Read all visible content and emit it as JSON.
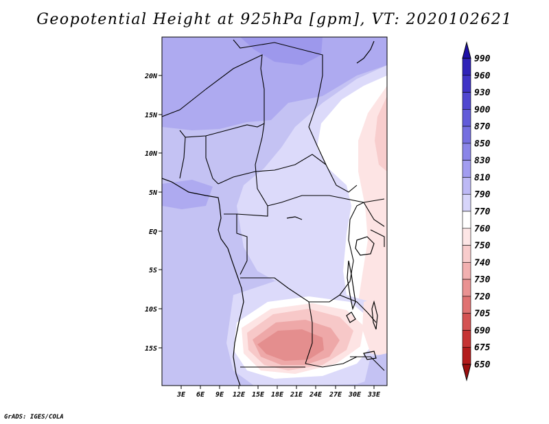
{
  "map": {
    "title": "Geopotential Height at 925hPa [gpm], VT: 2020102621",
    "variable": "Geopotential Height",
    "level": "925hPa",
    "units": "gpm",
    "valid_time": "2020102621",
    "lat_labels": [
      "20N",
      "15N",
      "10N",
      "5N",
      "EQ",
      "5S",
      "10S",
      "15S"
    ],
    "lon_labels": [
      "3E",
      "6E",
      "9E",
      "12E",
      "15E",
      "18E",
      "21E",
      "24E",
      "27E",
      "30E",
      "33E"
    ],
    "colorbar": {
      "levels": [
        "990",
        "960",
        "930",
        "900",
        "870",
        "850",
        "830",
        "810",
        "790",
        "770",
        "760",
        "750",
        "740",
        "730",
        "720",
        "705",
        "690",
        "675",
        "650"
      ],
      "colors": [
        "#1e10a8",
        "#2f22b8",
        "#3f33c6",
        "#5047d0",
        "#625bd9",
        "#756fe0",
        "#8a85e8",
        "#a29df0",
        "#bdb9f5",
        "#d7d5fa",
        "#ffffff",
        "#fde6e6",
        "#f8cccc",
        "#f2b0b0",
        "#ea9292",
        "#e07272",
        "#d45252",
        "#c63434",
        "#b31c1c",
        "#9c1010"
      ]
    },
    "credit": "GrADS: IGES/COLA"
  }
}
